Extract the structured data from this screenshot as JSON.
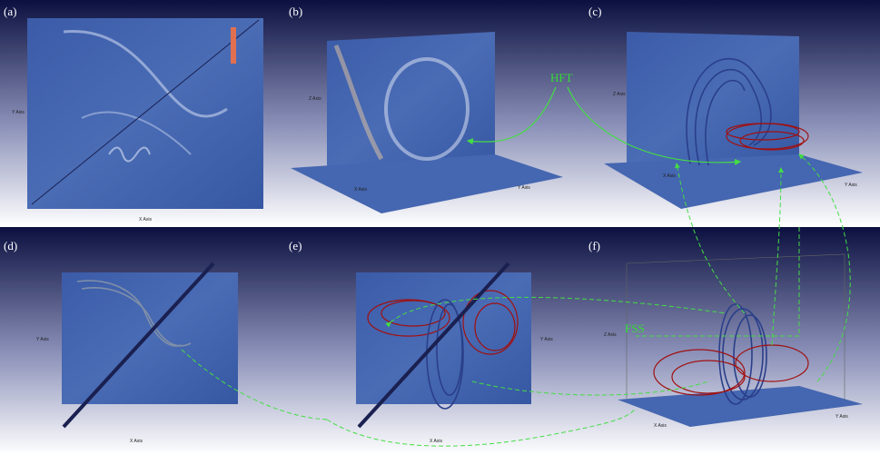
{
  "panels": [
    {
      "label": "(a)",
      "x_axis": "X Axis",
      "y_axis": "Y Axis"
    },
    {
      "label": "(b)",
      "x_axis": "X Axis",
      "y_axis": "Y Axis",
      "z_axis": "Z Axis"
    },
    {
      "label": "(c)",
      "x_axis": "X Axis",
      "y_axis": "Y Axis",
      "z_axis": "Z Axis"
    },
    {
      "label": "(d)",
      "x_axis": "X Axis",
      "y_axis": "Y Axis"
    },
    {
      "label": "(e)",
      "x_axis": "X Axis",
      "y_axis": "Y Axis"
    },
    {
      "label": "(f)",
      "x_axis": "X Axis",
      "y_axis": "Y Axis",
      "z_axis": "Z Axis"
    }
  ],
  "annotations": {
    "hft": "HFT",
    "fss": "FSS"
  }
}
